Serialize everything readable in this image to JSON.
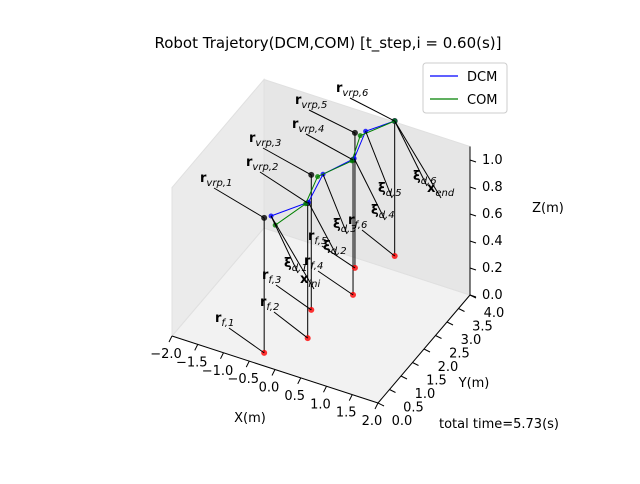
{
  "chart_data": {
    "type": "scatter3d",
    "title": "Robot Trajetory(DCM,COM) [t_step,i = 0.60(s)]",
    "xlabel": "X(m)",
    "ylabel": "Y(m)",
    "zlabel": "Z(m)",
    "xlim": [
      -2,
      2
    ],
    "ylim": [
      0,
      4
    ],
    "zlim": [
      0,
      1.1
    ],
    "xticks": [
      {
        "value": -2,
        "label": "−2.0"
      },
      {
        "value": -1.5,
        "label": "−1.5"
      },
      {
        "value": -1,
        "label": "−1.0"
      },
      {
        "value": -0.5,
        "label": "−0.5"
      },
      {
        "value": 0,
        "label": "0.0"
      },
      0.5,
      {
        "value": 1,
        "label": "1.0"
      },
      1.5,
      {
        "value": 2,
        "label": "2.0"
      }
    ],
    "yticks": [
      {
        "value": 0,
        "label": "0.0"
      },
      0.5,
      {
        "value": 1,
        "label": "1.0"
      },
      1.5,
      {
        "value": 2,
        "label": "2.0"
      },
      2.5,
      {
        "value": 3,
        "label": "3.0"
      },
      3.5,
      {
        "value": 4,
        "label": "4.0"
      }
    ],
    "zticks": [
      {
        "value": 0,
        "label": "0.0"
      },
      0.2,
      0.4,
      0.6,
      0.8,
      {
        "value": 1,
        "label": "1.0"
      }
    ],
    "grid": true,
    "legend": "upper right",
    "series": [
      {
        "name": "DCM",
        "color": "#0000ff",
        "x": [
          -0.3,
          0.09,
          -0.05,
          0.22,
          0.04,
          0.35
        ],
        "y": [
          0.5,
          1.25,
          2.2,
          2.95,
          3.85,
          4.42
        ],
        "z": [
          1.0,
          1.0,
          1.0,
          1.0,
          1.0,
          1.0
        ]
      },
      {
        "name": "COM",
        "color": "#008000",
        "x": [
          -0.17,
          0.05,
          -0.12,
          0.2,
          -0.02,
          0.35
        ],
        "y": [
          0.39,
          1.22,
          2.12,
          2.9,
          3.75,
          4.42
        ],
        "z": [
          0.97,
          0.99,
          0.99,
          0.99,
          0.98,
          1.0
        ]
      }
    ],
    "vrp": {
      "color": "#000000",
      "x": [
        -0.38,
        0.09,
        -0.22,
        0.22,
        -0.1,
        0.35
      ],
      "y": [
        0.38,
        1.22,
        2.07,
        2.9,
        3.7,
        4.42
      ],
      "z": [
        1.0,
        1.0,
        1.0,
        1.0,
        1.0,
        1.0
      ]
    },
    "feet": {
      "color": "#ff0000",
      "x": [
        -0.38,
        0.09,
        -0.22,
        0.22,
        -0.1,
        0.35
      ],
      "y": [
        0.38,
        1.22,
        2.07,
        2.9,
        3.7,
        4.42
      ],
      "z": [
        0,
        0,
        0,
        0,
        0,
        0
      ]
    },
    "vrp_labels": [
      {
        "base": "r",
        "sub": "vrp,1"
      },
      {
        "base": "r",
        "sub": "vrp,2"
      },
      {
        "base": "r",
        "sub": "vrp,3"
      },
      {
        "base": "r",
        "sub": "vrp,4"
      },
      {
        "base": "r",
        "sub": "vrp,5"
      },
      {
        "base": "r",
        "sub": "vrp,6"
      }
    ],
    "foot_labels": [
      {
        "base": "r",
        "sub": "f,1"
      },
      {
        "base": "r",
        "sub": "f,2"
      },
      {
        "base": "r",
        "sub": "f,3"
      },
      {
        "base": "r",
        "sub": "f,4"
      },
      {
        "base": "r",
        "sub": "f,5"
      },
      {
        "base": "r",
        "sub": "f,6"
      }
    ],
    "dcm_labels": [
      {
        "base": "ξ",
        "sub": "d,1"
      },
      {
        "base": "ξ",
        "sub": "d,2"
      },
      {
        "base": "ξ",
        "sub": "d,3"
      },
      {
        "base": "ξ",
        "sub": "d,4"
      },
      {
        "base": "ξ",
        "sub": "d,5"
      },
      {
        "base": "ξ",
        "sub": "d,6"
      }
    ],
    "start_label": {
      "base": "x",
      "sub": "ini"
    },
    "end_label": {
      "base": "x",
      "sub": "end"
    },
    "note": {
      "text": "total time=5.73(s)",
      "color": "#ff0000"
    }
  }
}
